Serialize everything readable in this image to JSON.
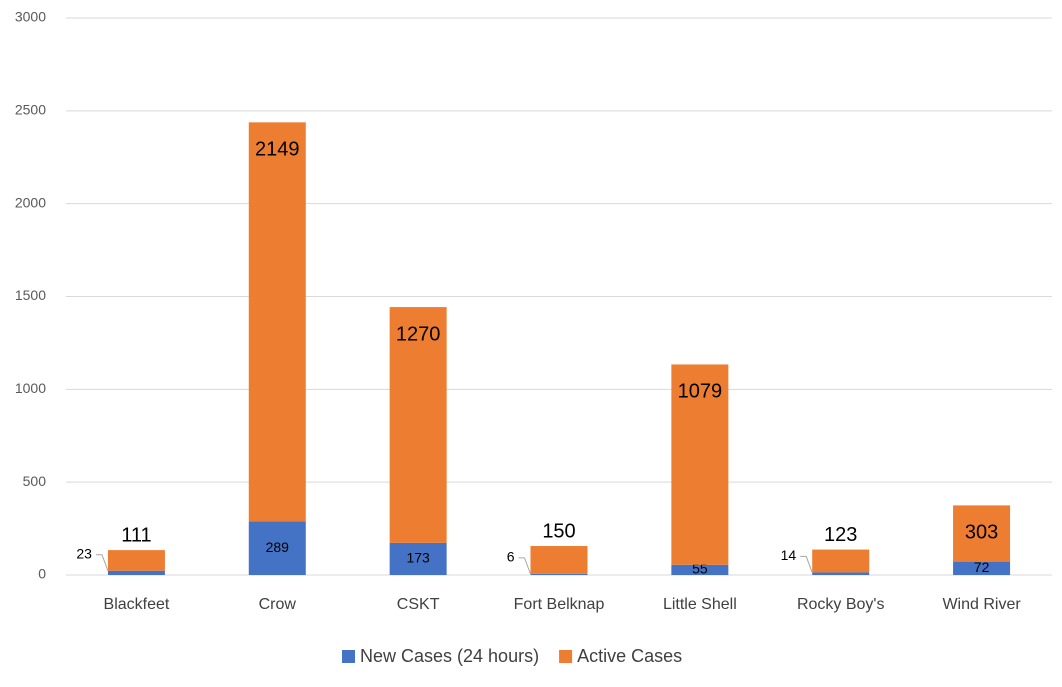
{
  "chart_data": {
    "type": "stacked_bar",
    "categories": [
      "Blackfeet",
      "Crow",
      "CSKT",
      "Fort Belknap",
      "Little Shell",
      "Rocky Boy's",
      "Wind River"
    ],
    "series": [
      {
        "name": "New Cases (24 hours)",
        "color": "#4472c4",
        "values": [
          23,
          289,
          173,
          6,
          55,
          14,
          72
        ]
      },
      {
        "name": "Active Cases",
        "color": "#ed7d31",
        "values": [
          111,
          2149,
          1270,
          150,
          1079,
          123,
          303
        ]
      }
    ],
    "ylim": [
      0,
      3000
    ],
    "yticks": [
      0,
      500,
      1000,
      1500,
      2000,
      2500,
      3000
    ],
    "grid": true,
    "legend": "bottom"
  }
}
